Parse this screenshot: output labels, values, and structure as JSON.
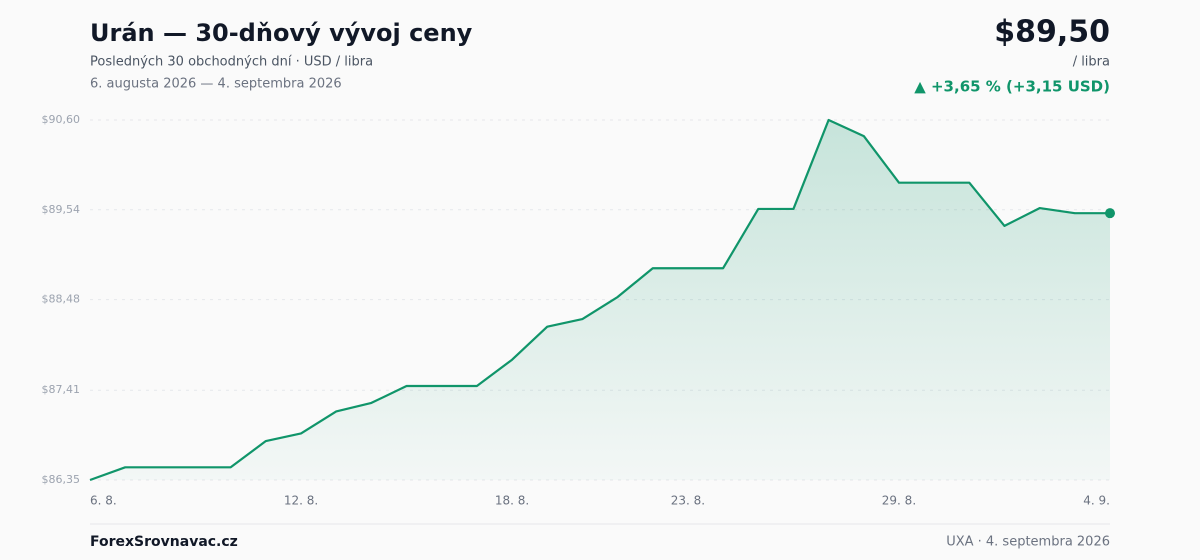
{
  "header": {
    "price": "$89,50",
    "price_unit": "/ libra",
    "change": "▲ +3,65 % (+3,15 USD)"
  },
  "chart_data": {
    "type": "line",
    "title": "Urán — 30-dňový vývoj ceny",
    "subtitle": "Posledných 30 obchodných dní · USD / libra",
    "date_range": "6. augusta 2026 — 4. septembra 2026",
    "categories": [
      "6. 8.",
      null,
      null,
      null,
      null,
      null,
      "12. 8.",
      null,
      null,
      null,
      null,
      null,
      "18. 8.",
      null,
      null,
      null,
      null,
      "23. 8.",
      null,
      null,
      null,
      null,
      null,
      "29. 8.",
      null,
      null,
      null,
      null,
      null,
      "4. 9."
    ],
    "series": [
      {
        "name": "Urán",
        "color": "#10956a",
        "values": [
          86.35,
          86.5,
          86.5,
          86.5,
          86.5,
          86.81,
          86.9,
          87.16,
          87.26,
          87.46,
          87.46,
          87.46,
          87.77,
          88.16,
          88.25,
          88.51,
          88.85,
          88.85,
          88.85,
          89.55,
          89.55,
          90.6,
          90.41,
          89.86,
          89.86,
          89.86,
          89.35,
          89.56,
          89.5,
          89.5
        ]
      }
    ],
    "ylim": [
      86.35,
      90.6
    ],
    "yticks": [
      {
        "value": 86.35,
        "label": "$86,35"
      },
      {
        "value": 87.41,
        "label": "$87,41"
      },
      {
        "value": 88.48,
        "label": "$88,48"
      },
      {
        "value": 89.54,
        "label": "$89,54"
      },
      {
        "value": 90.6,
        "label": "$90,60"
      }
    ],
    "grid": true
  },
  "footer": {
    "brand": "ForexSrovnavac.cz",
    "source": "UXA · 4. septembra 2026"
  }
}
